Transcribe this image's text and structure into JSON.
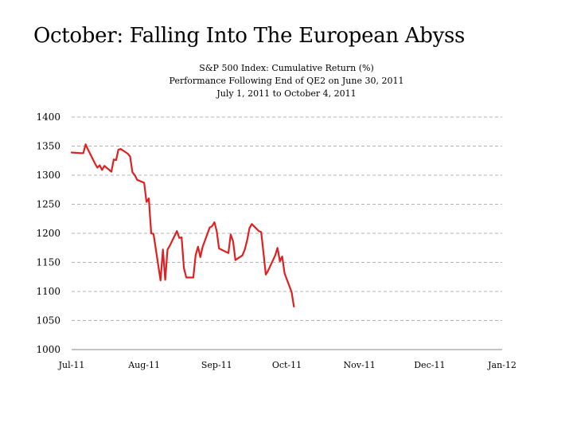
{
  "slide": {
    "title": "October: Falling Into The European Abyss"
  },
  "chart_data": {
    "type": "line",
    "title": "S&P 500 Index: Cumulative Return (%)",
    "subtitle": "Performance Following End of QE2 on June 30, 2011",
    "subtitle2": "July 1, 2011 to October 4, 2011",
    "xlabel": "",
    "ylabel": "",
    "ylim": [
      1000,
      1400
    ],
    "yticks": [
      1000,
      1050,
      1100,
      1150,
      1200,
      1250,
      1300,
      1350,
      1400
    ],
    "xticks": [
      "Jul-11",
      "Aug-11",
      "Sep-11",
      "Oct-11",
      "Nov-11",
      "Dec-11",
      "Jan-12"
    ],
    "xlim": [
      "2011-07-01",
      "2012-01-01"
    ],
    "grid": "horizontal dashed",
    "series": [
      {
        "color": "#e02020",
        "points": [
          [
            "2011-07-01",
            1339
          ],
          [
            "2011-07-05",
            1338
          ],
          [
            "2011-07-06",
            1338
          ],
          [
            "2011-07-07",
            1353
          ],
          [
            "2011-07-08",
            1344
          ],
          [
            "2011-07-11",
            1320
          ],
          [
            "2011-07-12",
            1313
          ],
          [
            "2011-07-13",
            1317
          ],
          [
            "2011-07-14",
            1309
          ],
          [
            "2011-07-15",
            1316
          ],
          [
            "2011-07-18",
            1306
          ],
          [
            "2011-07-19",
            1327
          ],
          [
            "2011-07-20",
            1326
          ],
          [
            "2011-07-21",
            1344
          ],
          [
            "2011-07-22",
            1345
          ],
          [
            "2011-07-25",
            1337
          ],
          [
            "2011-07-26",
            1332
          ],
          [
            "2011-07-27",
            1305
          ],
          [
            "2011-07-28",
            1300
          ],
          [
            "2011-07-29",
            1292
          ],
          [
            "2011-08-01",
            1287
          ],
          [
            "2011-08-02",
            1254
          ],
          [
            "2011-08-03",
            1260
          ],
          [
            "2011-08-04",
            1200
          ],
          [
            "2011-08-05",
            1199
          ],
          [
            "2011-08-08",
            1119
          ],
          [
            "2011-08-09",
            1172
          ],
          [
            "2011-08-10",
            1120
          ],
          [
            "2011-08-11",
            1172
          ],
          [
            "2011-08-12",
            1179
          ],
          [
            "2011-08-15",
            1204
          ],
          [
            "2011-08-16",
            1192
          ],
          [
            "2011-08-17",
            1193
          ],
          [
            "2011-08-18",
            1140
          ],
          [
            "2011-08-19",
            1124
          ],
          [
            "2011-08-22",
            1124
          ],
          [
            "2011-08-23",
            1162
          ],
          [
            "2011-08-24",
            1177
          ],
          [
            "2011-08-25",
            1159
          ],
          [
            "2011-08-26",
            1177
          ],
          [
            "2011-08-29",
            1210
          ],
          [
            "2011-08-30",
            1212
          ],
          [
            "2011-08-31",
            1219
          ],
          [
            "2011-09-01",
            1204
          ],
          [
            "2011-09-02",
            1174
          ],
          [
            "2011-09-06",
            1166
          ],
          [
            "2011-09-07",
            1198
          ],
          [
            "2011-09-08",
            1186
          ],
          [
            "2011-09-09",
            1154
          ],
          [
            "2011-09-12",
            1162
          ],
          [
            "2011-09-13",
            1172
          ],
          [
            "2011-09-14",
            1188
          ],
          [
            "2011-09-15",
            1209
          ],
          [
            "2011-09-16",
            1216
          ],
          [
            "2011-09-19",
            1204
          ],
          [
            "2011-09-20",
            1202
          ],
          [
            "2011-09-21",
            1166
          ],
          [
            "2011-09-22",
            1129
          ],
          [
            "2011-09-23",
            1136
          ],
          [
            "2011-09-26",
            1162
          ],
          [
            "2011-09-27",
            1175
          ],
          [
            "2011-09-28",
            1152
          ],
          [
            "2011-09-29",
            1160
          ],
          [
            "2011-09-30",
            1131
          ],
          [
            "2011-10-03",
            1099
          ],
          [
            "2011-10-04",
            1074
          ]
        ]
      }
    ]
  }
}
